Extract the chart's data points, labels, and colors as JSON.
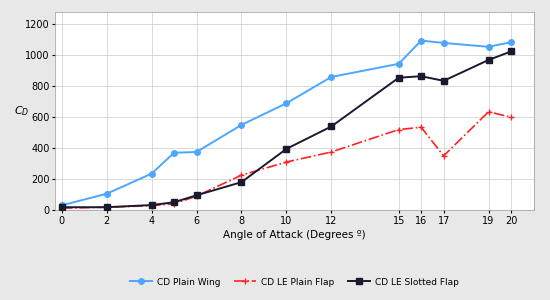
{
  "cd_plain_wing_x": [
    0,
    2,
    4,
    5,
    6,
    8,
    10,
    12,
    15,
    16,
    17,
    19,
    20
  ],
  "cd_plain_wing_y": [
    30,
    105,
    235,
    370,
    375,
    550,
    690,
    860,
    945,
    1095,
    1080,
    1055,
    1085
  ],
  "cd_le_plain_flap_x": [
    0,
    2,
    4,
    5,
    6,
    8,
    10,
    12,
    15,
    16,
    17,
    19,
    20
  ],
  "cd_le_plain_flap_y": [
    12,
    18,
    28,
    40,
    90,
    225,
    310,
    375,
    520,
    535,
    350,
    635,
    600
  ],
  "cd_le_slotted_flap_x": [
    0,
    2,
    4,
    5,
    6,
    8,
    10,
    12,
    15,
    16,
    17,
    19,
    20
  ],
  "cd_le_slotted_flap_y": [
    18,
    18,
    32,
    50,
    95,
    180,
    395,
    540,
    855,
    865,
    835,
    970,
    1025
  ],
  "xlabel": "Angle of Attack (Degrees º)",
  "ylabel": "C_D",
  "xlim": [
    -0.3,
    21
  ],
  "ylim": [
    0,
    1280
  ],
  "xticks": [
    0,
    2,
    4,
    6,
    8,
    10,
    12,
    15,
    16,
    17,
    19,
    20
  ],
  "yticks": [
    0,
    200,
    400,
    600,
    800,
    1000,
    1200
  ],
  "legend_labels": [
    "CD Plain Wing",
    "CD LE Plain Flap",
    "CD LE Slotted Flap"
  ],
  "color_plain_wing": "#4da6ff",
  "color_plain_flap": "#ff2222",
  "color_slotted_flap": "#1a1a2e",
  "bg_color": "#e8e8e8",
  "plot_bg_color": "#ffffff"
}
